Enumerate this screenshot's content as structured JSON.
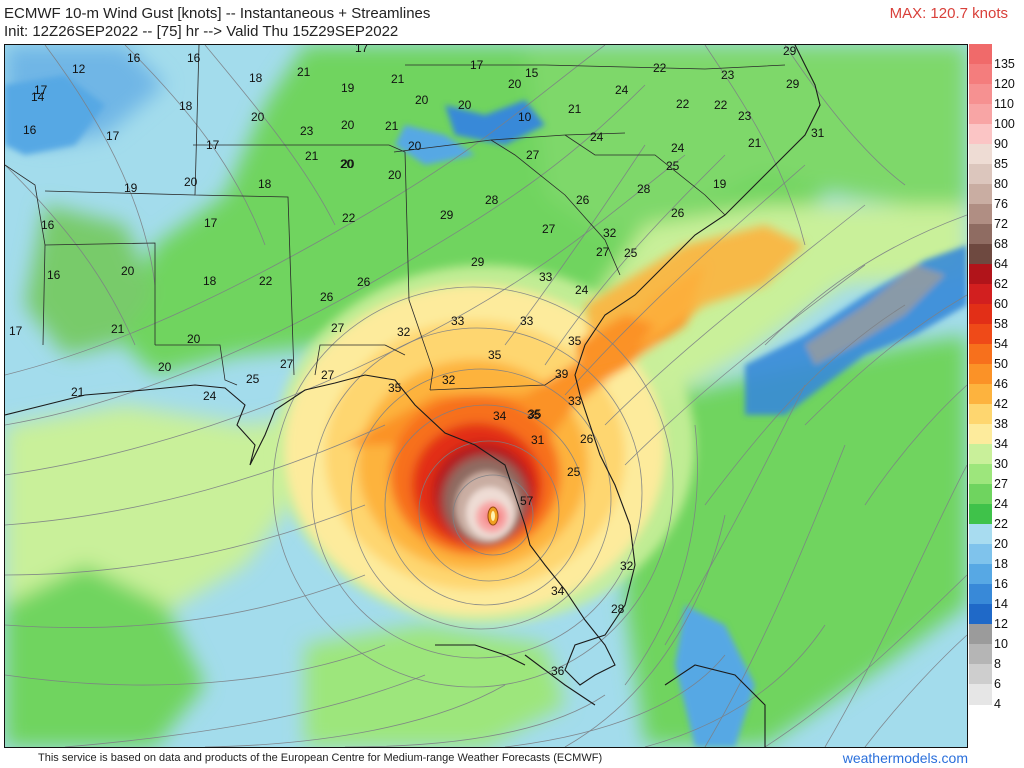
{
  "header": {
    "title": "ECMWF 10-m Wind Gust [knots] -- Instantaneous + Streamlines",
    "subtitle": "Init: 12Z26SEP2022 -- [75] hr --> Valid Thu 15Z29SEP2022",
    "max": "MAX: 120.7 knots"
  },
  "footer": {
    "credit": "This service is based on data and products of the European Centre for Medium-range Weather Forecasts (ECMWF)",
    "brand": "weathermodels.com"
  },
  "legend": {
    "levels": [
      {
        "label": "135",
        "color": "#f06a6a"
      },
      {
        "label": "120",
        "color": "#f47d7d"
      },
      {
        "label": "110",
        "color": "#f69191"
      },
      {
        "label": "100",
        "color": "#f8a5a5"
      },
      {
        "label": "90",
        "color": "#fbc5c5"
      },
      {
        "label": "85",
        "color": "#eedcd4"
      },
      {
        "label": "80",
        "color": "#dcc6bd"
      },
      {
        "label": "76",
        "color": "#c9ada2"
      },
      {
        "label": "72",
        "color": "#b08e83"
      },
      {
        "label": "68",
        "color": "#8f6c62"
      },
      {
        "label": "64",
        "color": "#6e4940"
      },
      {
        "label": "62",
        "color": "#b1141a"
      },
      {
        "label": "60",
        "color": "#d21f1f"
      },
      {
        "label": "58",
        "color": "#e22f17"
      },
      {
        "label": "54",
        "color": "#ef4a18"
      },
      {
        "label": "50",
        "color": "#f7701c"
      },
      {
        "label": "46",
        "color": "#fb9227"
      },
      {
        "label": "42",
        "color": "#fdb33e"
      },
      {
        "label": "38",
        "color": "#fed66f"
      },
      {
        "label": "34",
        "color": "#fdeb9c"
      },
      {
        "label": "30",
        "color": "#c9f09a"
      },
      {
        "label": "27",
        "color": "#9de67c"
      },
      {
        "label": "24",
        "color": "#6fd45f"
      },
      {
        "label": "22",
        "color": "#3fc24a"
      },
      {
        "label": "20",
        "color": "#a8dcf0"
      },
      {
        "label": "18",
        "color": "#7fc3ec"
      },
      {
        "label": "16",
        "color": "#57a8e4"
      },
      {
        "label": "14",
        "color": "#3889d8"
      },
      {
        "label": "12",
        "color": "#1f69c8"
      },
      {
        "label": "10",
        "color": "#9b9b9b"
      },
      {
        "label": "8",
        "color": "#b5b5b5"
      },
      {
        "label": "6",
        "color": "#cecece"
      },
      {
        "label": "4",
        "color": "#e6e6e6"
      }
    ]
  },
  "gust_labels": [
    "12",
    "16",
    "16",
    "17",
    "17",
    "15",
    "22",
    "23",
    "29",
    "14",
    "18",
    "18",
    "21",
    "19",
    "21",
    "20",
    "20",
    "20",
    "10",
    "21",
    "24",
    "22",
    "22",
    "23",
    "29",
    "16",
    "17",
    "20",
    "23",
    "20",
    "21",
    "20",
    "24",
    "21",
    "31",
    "17",
    "17",
    "21",
    "20",
    "20",
    "27",
    "24",
    "25",
    "19",
    "19",
    "20",
    "18",
    "20",
    "28",
    "26",
    "28",
    "26",
    "16",
    "17",
    "22",
    "29",
    "27",
    "32",
    "16",
    "20",
    "18",
    "22",
    "29",
    "27",
    "25",
    "17",
    "21",
    "26",
    "26",
    "33",
    "24",
    "20",
    "27",
    "32",
    "33",
    "33",
    "35",
    "20",
    "35",
    "35",
    "39",
    "21",
    "27",
    "25",
    "27",
    "32",
    "33",
    "24",
    "35",
    "34",
    "35",
    "26",
    "31",
    "25",
    "57",
    "32",
    "34",
    "28",
    "36"
  ]
}
